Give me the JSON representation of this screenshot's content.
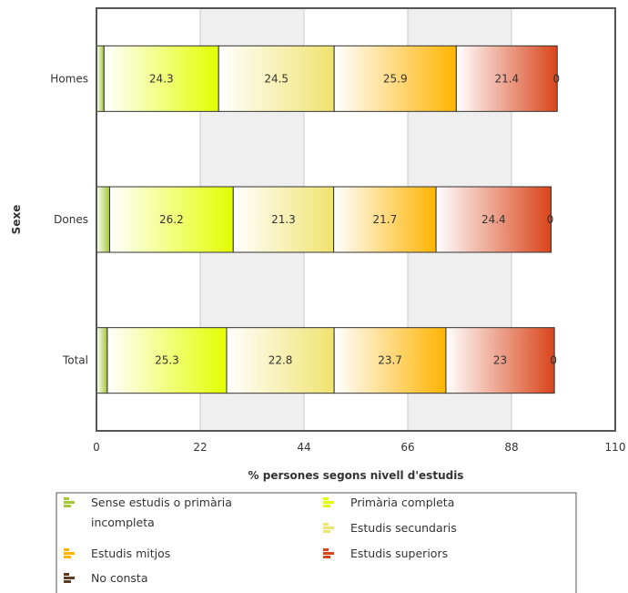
{
  "chart_data": {
    "type": "bar",
    "orientation": "horizontal",
    "stacked": true,
    "categories": [
      "Homes",
      "Dones",
      "Total"
    ],
    "series": [
      {
        "name": "Sense estudis o primària incompleta",
        "color": "#a4c639",
        "values": [
          1.6,
          2.8,
          2.3
        ]
      },
      {
        "name": "Primària completa",
        "color": "#e3ff00",
        "values": [
          24.3,
          26.2,
          25.3
        ]
      },
      {
        "name": "Estudis secundaris",
        "color": "#f0e36e",
        "values": [
          24.5,
          21.3,
          22.8
        ]
      },
      {
        "name": "Estudis mitjos",
        "color": "#ffb400",
        "values": [
          25.9,
          21.7,
          23.7
        ]
      },
      {
        "name": "Estudis superiors",
        "color": "#d9441a",
        "values": [
          21.4,
          24.4,
          23
        ]
      },
      {
        "name": "No consta",
        "color": "#5a3a20",
        "values": [
          0,
          0,
          0
        ]
      }
    ],
    "data_labels": [
      [
        "",
        "24.3",
        "24.5",
        "25.9",
        "21.4",
        "0"
      ],
      [
        "",
        "26.2",
        "21.3",
        "21.7",
        "24.4",
        "0"
      ],
      [
        "",
        "25.3",
        "22.8",
        "23.7",
        "23",
        "0"
      ]
    ],
    "xlabel": "% persones segons nivell d'estudis",
    "ylabel": "Sexe",
    "xlim": [
      0,
      110
    ],
    "xticks": [
      "0",
      "22",
      "44",
      "66",
      "88",
      "110"
    ],
    "grid": true,
    "legend_position": "bottom",
    "legend": [
      {
        "label_lines": [
          "Sense estudis o primària",
          "incompleta"
        ],
        "color": "#a4c639"
      },
      {
        "label_lines": [
          "Primària completa"
        ],
        "color": "#e3ff00"
      },
      {
        "label_lines": [
          "Estudis secundaris"
        ],
        "color": "#f0e36e"
      },
      {
        "label_lines": [
          "Estudis mitjos"
        ],
        "color": "#ffb400"
      },
      {
        "label_lines": [
          "Estudis superiors"
        ],
        "color": "#d9441a"
      },
      {
        "label_lines": [
          "No consta"
        ],
        "color": "#5a3a20"
      }
    ]
  }
}
